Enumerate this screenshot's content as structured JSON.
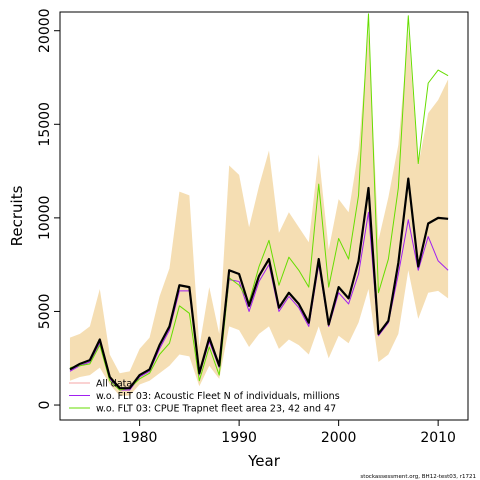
{
  "chart_data": {
    "type": "line",
    "title": "",
    "xlabel": "Year",
    "ylabel": "Recruits",
    "xlim": [
      1972,
      2013
    ],
    "ylim": [
      -800,
      21000
    ],
    "x_ticks": [
      1980,
      1990,
      2000,
      2010
    ],
    "y_ticks": [
      0,
      5000,
      10000,
      15000,
      20000
    ],
    "legend_position": "bottom-left",
    "grid": false,
    "x": [
      1973,
      1974,
      1975,
      1976,
      1977,
      1978,
      1979,
      1980,
      1981,
      1982,
      1983,
      1984,
      1985,
      1986,
      1987,
      1988,
      1989,
      1990,
      1991,
      1992,
      1993,
      1994,
      1995,
      1996,
      1997,
      1998,
      1999,
      2000,
      2001,
      2002,
      2003,
      2004,
      2005,
      2006,
      2007,
      2008,
      2009,
      2010,
      2011
    ],
    "band": {
      "color": "#f5deb3",
      "lower": [
        1300,
        1500,
        1600,
        2000,
        1100,
        500,
        500,
        1100,
        1300,
        1700,
        2100,
        2700,
        2600,
        1000,
        2100,
        1400,
        4200,
        4000,
        3100,
        3800,
        4200,
        3000,
        3500,
        3200,
        2700,
        4200,
        2500,
        3700,
        3300,
        4400,
        6200,
        2300,
        2700,
        3800,
        7200,
        4600,
        6000,
        6100,
        5700
      ],
      "upper": [
        3600,
        3800,
        4200,
        6200,
        2700,
        1700,
        1800,
        3000,
        3600,
        5800,
        7300,
        11400,
        11200,
        3100,
        6300,
        3800,
        12800,
        12300,
        9500,
        11700,
        13600,
        9200,
        10300,
        9500,
        8700,
        13400,
        8300,
        11000,
        10300,
        13600,
        20000,
        8800,
        11100,
        13900,
        20000,
        12800,
        15600,
        16300,
        17400
      ]
    },
    "series": [
      {
        "name": "",
        "color": "#000000",
        "width": 2.2,
        "values": [
          1900,
          2200,
          2400,
          3500,
          1500,
          900,
          900,
          1600,
          1900,
          3200,
          4200,
          6400,
          6300,
          1700,
          3600,
          2100,
          7200,
          7000,
          5300,
          6900,
          7800,
          5200,
          6000,
          5400,
          4400,
          7800,
          4300,
          6300,
          5700,
          7700,
          11600,
          3800,
          4500,
          7600,
          12100,
          7400,
          9700,
          10000,
          9950
        ]
      },
      {
        "name": "All data",
        "color": "#f4a6a6",
        "width": 1,
        "values": [
          1900,
          2200,
          2400,
          3500,
          1500,
          900,
          900,
          1600,
          1900,
          3200,
          4200,
          6400,
          6300,
          1700,
          3600,
          2100,
          7200,
          7000,
          5300,
          6900,
          7800,
          5200,
          6000,
          5400,
          4400,
          7800,
          4300,
          6300,
          5700,
          7700,
          11600,
          3800,
          4500,
          7600,
          12100,
          7400,
          9700,
          10000,
          9950
        ]
      },
      {
        "name": "w.o. FLT 03: Acoustic Fleet  N of individuals, millions",
        "color": "#a020f0",
        "width": 1,
        "values": [
          1800,
          2100,
          2300,
          3300,
          1400,
          800,
          800,
          1500,
          1800,
          3000,
          4000,
          6100,
          6100,
          1600,
          3400,
          2000,
          6700,
          6600,
          5000,
          6600,
          7500,
          5000,
          5800,
          5200,
          4200,
          7500,
          4200,
          6000,
          5400,
          7000,
          10300,
          3700,
          4400,
          7000,
          9900,
          7200,
          9000,
          7700,
          7200
        ]
      },
      {
        "name": "w.o. FLT 03: CPUE Trapnet fleet area 23, 42 and 47",
        "color": "#66dd00",
        "width": 1,
        "values": [
          2000,
          2100,
          2200,
          3200,
          1300,
          800,
          900,
          1400,
          1700,
          2700,
          3300,
          5300,
          4900,
          1300,
          3100,
          1600,
          6800,
          6400,
          5500,
          7400,
          8800,
          6400,
          7900,
          7200,
          6300,
          11800,
          6300,
          8900,
          7800,
          11200,
          20900,
          6000,
          7800,
          11600,
          20800,
          12900,
          17200,
          17900,
          17600
        ]
      }
    ],
    "legend": [
      {
        "label": "All data",
        "color": "#f4a6a6"
      },
      {
        "label": "w.o. FLT 03: Acoustic Fleet  N of individuals, millions",
        "color": "#a020f0"
      },
      {
        "label": "w.o. FLT 03: CPUE Trapnet fleet area 23, 42 and 47",
        "color": "#66dd00"
      }
    ],
    "footnote": "stockassessment.org, BH12-test03, r1721"
  }
}
